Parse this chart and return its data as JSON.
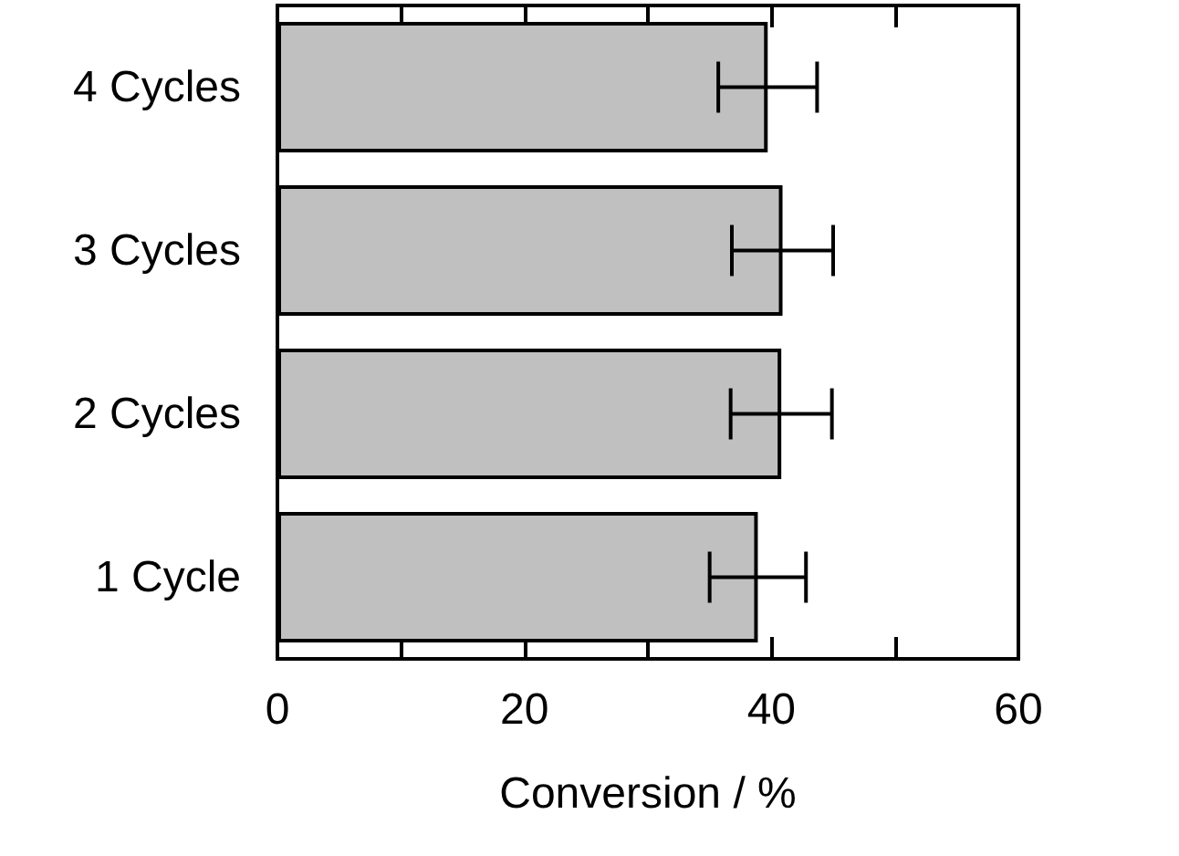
{
  "chart_data": {
    "type": "bar",
    "orientation": "horizontal",
    "xlabel": "Conversion / %",
    "categories": [
      "4 Cycles",
      "3 Cycles",
      "2 Cycles",
      "1 Cycle"
    ],
    "values": [
      39.7,
      40.9,
      40.8,
      38.9
    ],
    "errors": [
      4,
      4.1,
      4.1,
      3.9
    ],
    "color": "#c0c0c0",
    "xlim": [
      0,
      60
    ],
    "xticks": [
      0,
      {
        "value": 10,
        "label": null
      },
      20,
      {
        "value": 30,
        "label": null
      },
      40,
      {
        "value": 50,
        "label": null
      },
      60
    ],
    "grid": false
  }
}
